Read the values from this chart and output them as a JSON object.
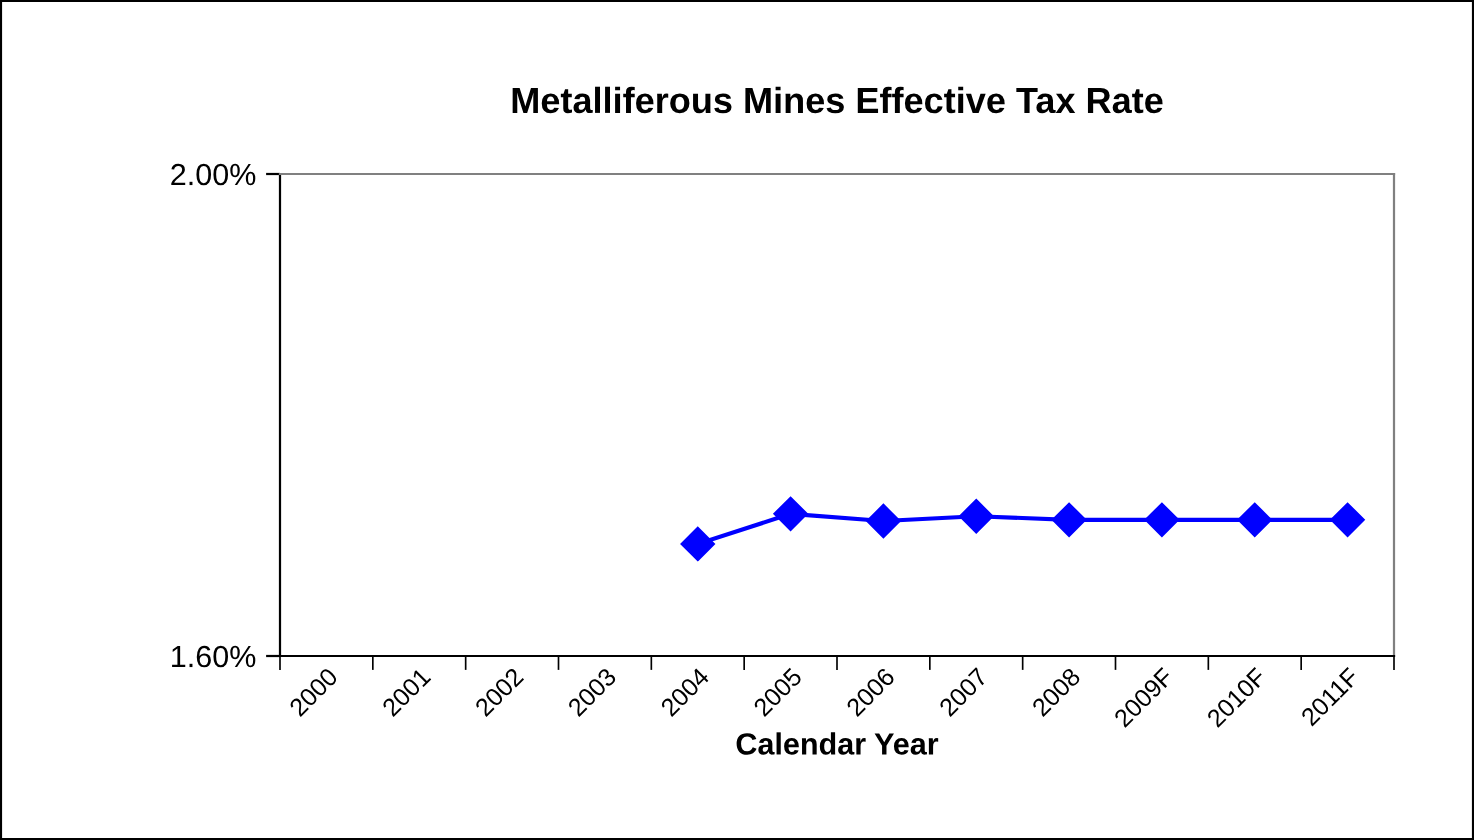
{
  "chart_data": {
    "type": "line",
    "title": "Metalliferous Mines Effective Tax Rate",
    "xlabel": "Calendar Year",
    "categories": [
      "2000",
      "2001",
      "2002",
      "2003",
      "2004",
      "2005",
      "2006",
      "2007",
      "2008",
      "2009F",
      "2010F",
      "2011F"
    ],
    "series": [
      {
        "color": "#0000ff",
        "values": [
          null,
          null,
          null,
          null,
          1.693,
          1.718,
          1.712,
          1.716,
          1.713,
          1.713,
          1.713,
          1.713
        ]
      }
    ],
    "ylim": [
      1.6,
      2.0
    ],
    "yticks": [
      {
        "value": 1.6,
        "label": "1.60%"
      },
      {
        "value": 2.0,
        "label": "2.00%"
      }
    ],
    "marker": "diamond",
    "line_style": "solid",
    "grid": false,
    "legend": false
  }
}
